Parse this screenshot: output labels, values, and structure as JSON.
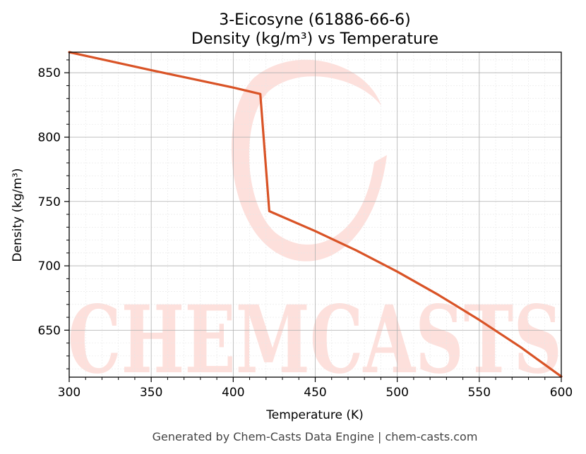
{
  "chart_data": {
    "type": "line",
    "title": "3-Eicosyne (61886-66-6)",
    "subtitle": "Density (kg/m³) vs Temperature",
    "xlabel": "Temperature (K)",
    "ylabel": "Density (kg/m³)",
    "xlim": [
      300,
      600
    ],
    "ylim": [
      613.5,
      866
    ],
    "xticks": [
      300,
      350,
      400,
      450,
      500,
      550,
      600
    ],
    "yticks": [
      650,
      700,
      750,
      800,
      850
    ],
    "grid": true,
    "line_color": "#d95326",
    "series": [
      {
        "x": [
          300,
          350,
          400,
          416.5,
          422,
          450,
          475,
          500,
          525,
          550,
          575,
          600
        ],
        "values": [
          866,
          852,
          838.5,
          833.5,
          742.5,
          727,
          712,
          695.5,
          677.5,
          658,
          637,
          614
        ]
      }
    ]
  },
  "watermark": {
    "text": "CHEMCASTS",
    "color": "#fde0dc"
  },
  "footer": "Generated by Chem-Casts Data Engine | chem-casts.com"
}
